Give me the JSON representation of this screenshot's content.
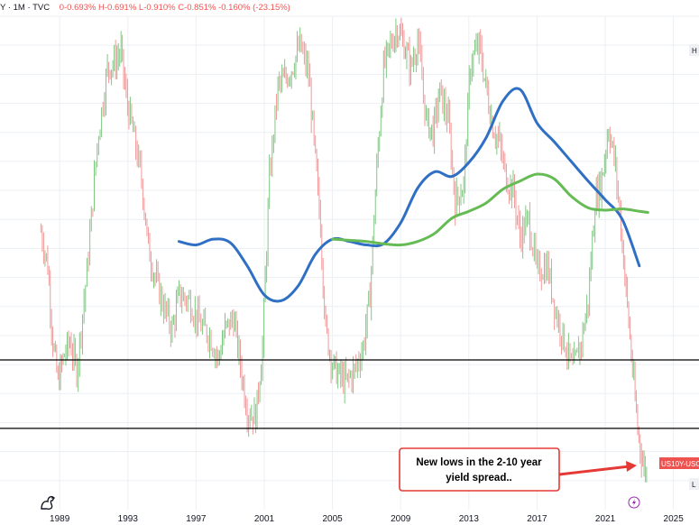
{
  "header": {
    "symbol": "Y · 1M · TVC",
    "ohlc": "0-0.693% H-0.691% L-0.910% C-0.851% -0.160% (-23.15%)"
  },
  "colors": {
    "up": "#81c784",
    "down": "#ef9a9a",
    "ma_blue": "#2f6fc4",
    "ma_green": "#66bb55",
    "hline": "#000000",
    "annotation_border": "#e53935",
    "price_tag": "#ef5350",
    "grid": "#eceff3"
  },
  "price_tag": "US10Y-USO",
  "corner_labels": {
    "top": "H",
    "bottom": "L"
  },
  "annotation": {
    "line1": "New lows in the 2-10 year",
    "line2": "yield spread.."
  },
  "icons": {
    "bottom_left": "tradingview-logo-icon",
    "bottom_right": "lightning-icon"
  },
  "chart_data": {
    "type": "candlestick",
    "title": "",
    "x_tick_labels": [
      "1989",
      "1993",
      "1997",
      "2001",
      "2005",
      "2009",
      "2013",
      "2017",
      "2021",
      "2025"
    ],
    "x_tick_years": [
      1989,
      1993,
      1997,
      2001,
      2005,
      2009,
      2013,
      2017,
      2021,
      2025
    ],
    "xlim": [
      1985.5,
      2026.5
    ],
    "ylim": [
      -1.25,
      3.0
    ],
    "series": [
      {
        "kind": "price",
        "x": [
          1987.9,
          1988.3,
          1988.6,
          1988.9,
          1989.2,
          1989.6,
          1990.0,
          1990.6,
          1991.2,
          1991.8,
          1992.2,
          1992.6,
          1992.9,
          1993.3,
          1993.8,
          1994.2,
          1994.6,
          1995.1,
          1995.6,
          1996.0,
          1996.6,
          1997.2,
          1997.8,
          1998.3,
          1998.7,
          1999.2,
          1999.6,
          2000.0,
          2000.5,
          2000.9,
          2001.3,
          2001.8,
          2002.2,
          2002.6,
          2003.1,
          2003.6,
          2004.0,
          2004.3,
          2004.6,
          2005.0,
          2005.4,
          2005.8,
          2006.3,
          2006.8,
          2007.2,
          2007.6,
          2008.0,
          2008.4,
          2008.8,
          2009.2,
          2009.6,
          2010.0,
          2010.5,
          2010.9,
          2011.3,
          2011.8,
          2012.2,
          2012.7,
          2013.1,
          2013.6,
          2014.0,
          2014.4,
          2014.8,
          2015.2,
          2015.6,
          2016.0,
          2016.5,
          2017.0,
          2017.6,
          2018.1,
          2018.6,
          2019.1,
          2019.6,
          2020.0,
          2020.4,
          2020.8,
          2021.2,
          2021.6,
          2022.0,
          2022.3,
          2022.6,
          2022.9,
          2023.2,
          2023.5
        ],
        "y": [
          1.15,
          0.85,
          0.2,
          -0.15,
          0.05,
          0.2,
          -0.05,
          0.8,
          1.9,
          2.55,
          2.6,
          2.7,
          2.3,
          2.0,
          1.6,
          1.0,
          0.75,
          0.5,
          0.3,
          0.6,
          0.55,
          0.35,
          0.25,
          0.05,
          0.3,
          0.4,
          0.0,
          -0.4,
          -0.45,
          0.15,
          1.6,
          2.4,
          2.45,
          2.55,
          2.75,
          2.5,
          1.75,
          1.2,
          0.3,
          0.0,
          -0.1,
          -0.15,
          -0.05,
          0.15,
          0.6,
          1.7,
          2.55,
          2.75,
          2.9,
          2.75,
          2.55,
          2.8,
          2.1,
          2.0,
          2.35,
          2.1,
          1.4,
          1.55,
          2.6,
          2.75,
          2.4,
          2.05,
          1.9,
          1.6,
          1.5,
          1.1,
          1.25,
          0.8,
          0.85,
          0.45,
          0.2,
          -0.05,
          0.2,
          0.55,
          1.4,
          1.6,
          2.05,
          1.7,
          1.05,
          0.5,
          -0.05,
          -0.55,
          -0.85,
          -0.95
        ]
      },
      {
        "kind": "ma",
        "name": "",
        "color": "blue",
        "x": [
          1996.0,
          1997.0,
          1998.0,
          1999.0,
          2000.0,
          2001.0,
          2002.0,
          2003.0,
          2004.0,
          2005.0,
          2006.0,
          2007.0,
          2008.0,
          2009.0,
          2010.0,
          2011.0,
          2012.0,
          2013.0,
          2014.0,
          2015.0,
          2016.0,
          2017.0,
          2018.0,
          2019.0,
          2020.0,
          2021.0,
          2022.0,
          2023.0
        ],
        "y": [
          1.06,
          1.03,
          1.08,
          1.05,
          0.85,
          0.6,
          0.55,
          0.68,
          0.95,
          1.08,
          1.06,
          1.03,
          1.04,
          1.22,
          1.52,
          1.66,
          1.62,
          1.74,
          1.95,
          2.27,
          2.37,
          2.08,
          1.92,
          1.75,
          1.58,
          1.42,
          1.25,
          0.85
        ]
      },
      {
        "kind": "ma",
        "name": "",
        "color": "green",
        "x": [
          2005.0,
          2006.0,
          2007.0,
          2008.0,
          2009.0,
          2010.0,
          2011.0,
          2012.0,
          2013.0,
          2014.0,
          2015.0,
          2016.0,
          2017.0,
          2018.0,
          2019.0,
          2020.0,
          2021.0,
          2022.0,
          2023.0,
          2023.5
        ],
        "y": [
          1.08,
          1.07,
          1.06,
          1.04,
          1.03,
          1.06,
          1.13,
          1.26,
          1.32,
          1.39,
          1.51,
          1.58,
          1.64,
          1.6,
          1.45,
          1.35,
          1.33,
          1.34,
          1.32,
          1.31
        ]
      }
    ],
    "horizontal_lines": [
      0.04,
      -0.55
    ],
    "grid": true
  }
}
